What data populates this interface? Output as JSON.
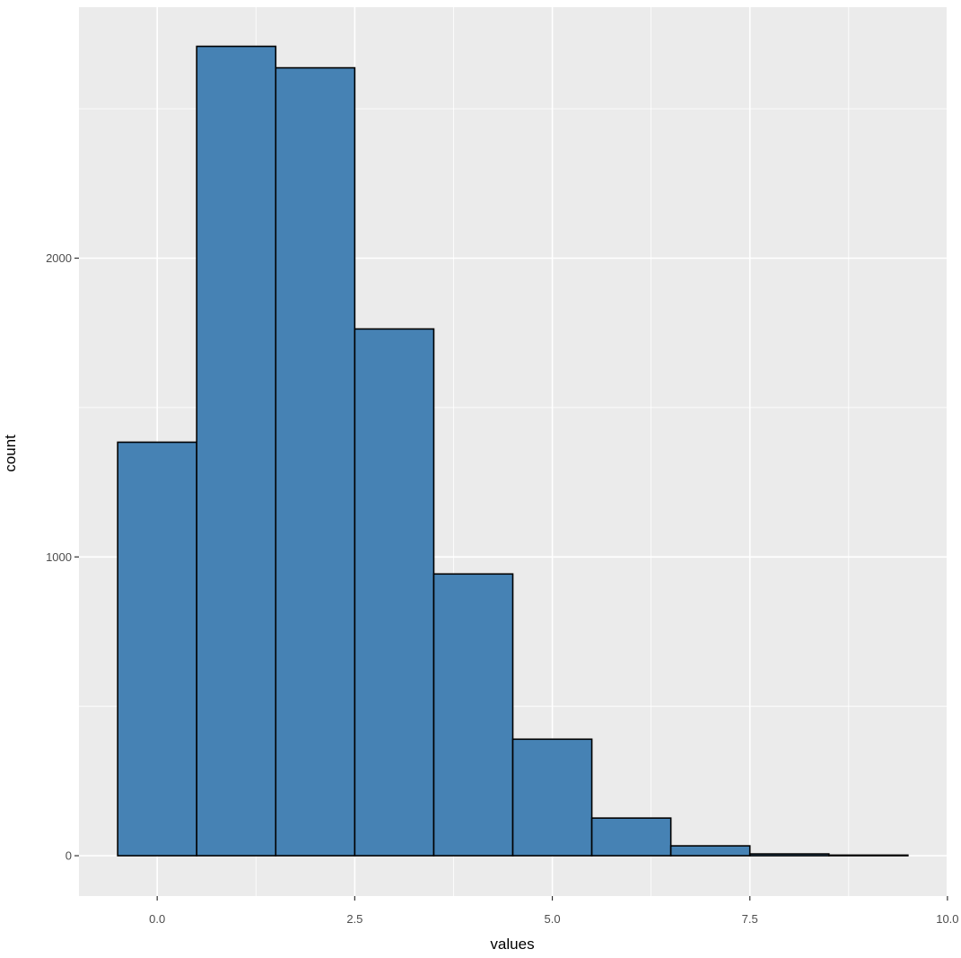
{
  "chart_data": {
    "type": "bar",
    "subtype": "histogram",
    "title": "",
    "xlabel": "values",
    "ylabel": "count",
    "bins": [
      {
        "x0": -0.5,
        "x1": 0.5,
        "count": 1384
      },
      {
        "x0": 0.5,
        "x1": 1.5,
        "count": 2709
      },
      {
        "x0": 1.5,
        "x1": 2.5,
        "count": 2637
      },
      {
        "x0": 2.5,
        "x1": 3.5,
        "count": 1763
      },
      {
        "x0": 3.5,
        "x1": 4.5,
        "count": 943
      },
      {
        "x0": 4.5,
        "x1": 5.5,
        "count": 390
      },
      {
        "x0": 5.5,
        "x1": 6.5,
        "count": 126
      },
      {
        "x0": 6.5,
        "x1": 7.5,
        "count": 33
      },
      {
        "x0": 7.5,
        "x1": 8.5,
        "count": 6
      },
      {
        "x0": 8.5,
        "x1": 9.5,
        "count": 2
      }
    ],
    "categories": [
      "0",
      "1",
      "2",
      "3",
      "4",
      "5",
      "6",
      "7",
      "8",
      "9"
    ],
    "values": [
      1384,
      2709,
      2637,
      1763,
      943,
      390,
      126,
      33,
      6,
      2
    ],
    "x_ticks": [
      0.0,
      2.5,
      5.0,
      7.5,
      10.0
    ],
    "x_tick_labels": [
      "0.0",
      "2.5",
      "5.0",
      "7.5",
      "10.0"
    ],
    "y_ticks": [
      0,
      1000,
      2000
    ],
    "y_tick_labels": [
      "0",
      "1000",
      "2000"
    ],
    "xlim": [
      -0.99,
      9.99
    ],
    "ylim": [
      -135,
      2840
    ],
    "grid": true,
    "legend": null,
    "colors": {
      "bar_fill": "#4682b4",
      "bar_outline": "#000000",
      "panel_background": "#ebebeb",
      "grid": "#ffffff"
    }
  }
}
